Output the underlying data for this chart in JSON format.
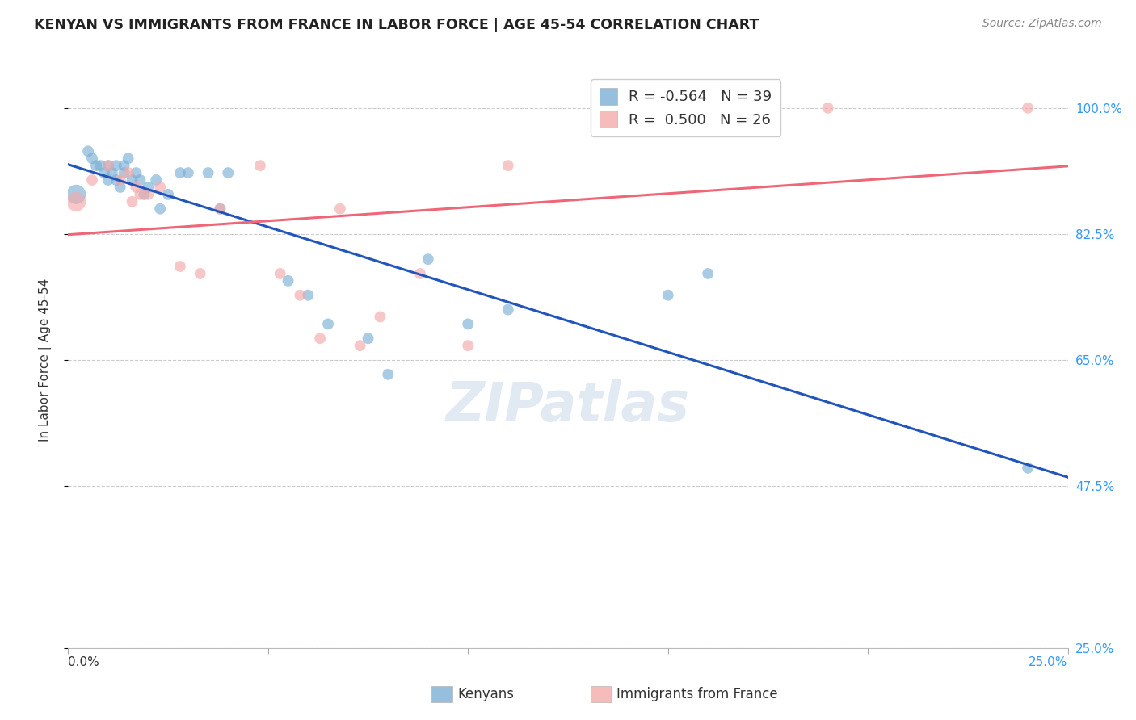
{
  "title": "KENYAN VS IMMIGRANTS FROM FRANCE IN LABOR FORCE | AGE 45-54 CORRELATION CHART",
  "source": "Source: ZipAtlas.com",
  "ylabel": "In Labor Force | Age 45-54",
  "xlim": [
    0.0,
    0.25
  ],
  "ylim": [
    0.25,
    1.05
  ],
  "right_ytick_labels": [
    "100.0%",
    "82.5%",
    "65.0%",
    "47.5%",
    "25.0%"
  ],
  "right_ytick_positions": [
    1.0,
    0.825,
    0.65,
    0.475,
    0.25
  ],
  "kenyan_color": "#7BAFD4",
  "france_color": "#F4AAAA",
  "kenyan_R": -0.564,
  "kenyan_N": 39,
  "france_R": 0.5,
  "france_N": 26,
  "line_blue": "#2255BB",
  "line_pink": "#EE6677",
  "kenyan_x": [
    0.002,
    0.005,
    0.006,
    0.007,
    0.008,
    0.009,
    0.01,
    0.01,
    0.011,
    0.012,
    0.012,
    0.013,
    0.014,
    0.014,
    0.015,
    0.016,
    0.017,
    0.018,
    0.019,
    0.02,
    0.022,
    0.023,
    0.025,
    0.028,
    0.03,
    0.035,
    0.038,
    0.04,
    0.055,
    0.06,
    0.065,
    0.075,
    0.08,
    0.09,
    0.1,
    0.11,
    0.15,
    0.16,
    0.24
  ],
  "kenyan_y": [
    0.88,
    0.94,
    0.93,
    0.92,
    0.92,
    0.91,
    0.9,
    0.92,
    0.91,
    0.9,
    0.92,
    0.89,
    0.92,
    0.91,
    0.93,
    0.9,
    0.91,
    0.9,
    0.88,
    0.89,
    0.9,
    0.86,
    0.88,
    0.91,
    0.91,
    0.91,
    0.86,
    0.91,
    0.76,
    0.74,
    0.7,
    0.68,
    0.63,
    0.79,
    0.7,
    0.72,
    0.74,
    0.77,
    0.5
  ],
  "france_x": [
    0.002,
    0.006,
    0.01,
    0.013,
    0.015,
    0.016,
    0.017,
    0.018,
    0.02,
    0.023,
    0.028,
    0.033,
    0.038,
    0.048,
    0.053,
    0.058,
    0.063,
    0.068,
    0.073,
    0.078,
    0.088,
    0.1,
    0.11,
    0.15,
    0.19,
    0.24
  ],
  "france_y": [
    0.87,
    0.9,
    0.92,
    0.9,
    0.91,
    0.87,
    0.89,
    0.88,
    0.88,
    0.89,
    0.78,
    0.77,
    0.86,
    0.92,
    0.77,
    0.74,
    0.68,
    0.86,
    0.67,
    0.71,
    0.77,
    0.67,
    0.92,
    0.99,
    1.0,
    1.0
  ],
  "kenyan_dot_size": 100,
  "france_dot_size": 100,
  "large_dot_size": 300,
  "grid_color": "#CCCCCC",
  "grid_style": "--",
  "background_color": "#FFFFFF",
  "legend_label1": "R = -0.564   N = 39",
  "legend_label2": "R =  0.500   N = 26",
  "bottom_legend_kenyan": "Kenyans",
  "bottom_legend_france": "Immigrants from France",
  "watermark": "ZIPatlas",
  "watermark_color": "#C5D5E8",
  "r_color": "#1155CC",
  "n_color": "#1155CC"
}
